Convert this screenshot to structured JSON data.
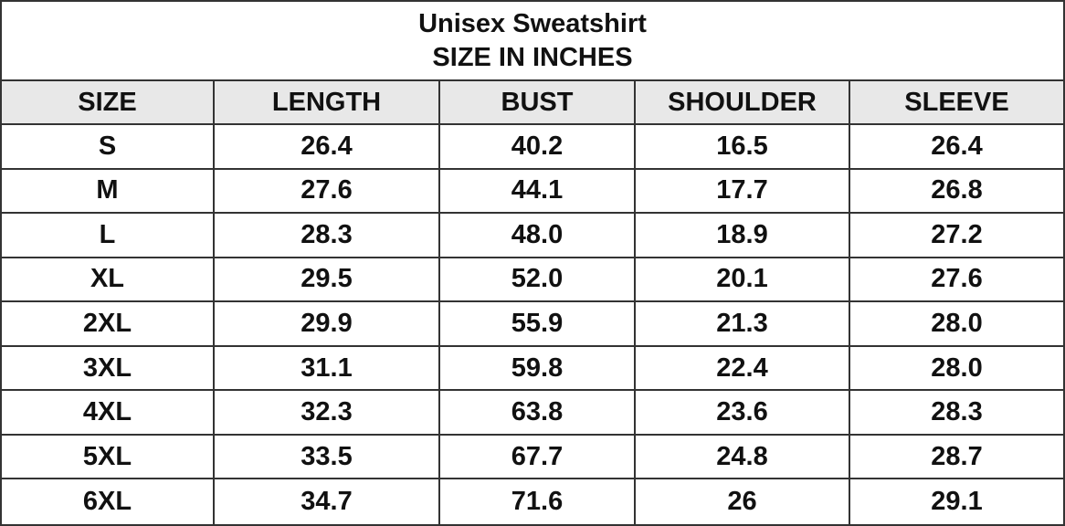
{
  "title": [
    "Unisex Sweatshirt",
    "SIZE IN INCHES"
  ],
  "table": {
    "header": [
      "SIZE",
      "LENGTH",
      "BUST",
      "SHOULDER",
      "SLEEVE"
    ],
    "rows": [
      [
        "S",
        "26.4",
        "40.2",
        "16.5",
        "26.4"
      ],
      [
        "M",
        "27.6",
        "44.1",
        "17.7",
        "26.8"
      ],
      [
        "L",
        "28.3",
        "48.0",
        "18.9",
        "27.2"
      ],
      [
        "XL",
        "29.5",
        "52.0",
        "20.1",
        "27.6"
      ],
      [
        "2XL",
        "29.9",
        "55.9",
        "21.3",
        "28.0"
      ],
      [
        "3XL",
        "31.1",
        "59.8",
        "22.4",
        "28.0"
      ],
      [
        "4XL",
        "32.3",
        "63.8",
        "23.6",
        "28.3"
      ],
      [
        "5XL",
        "33.5",
        "67.7",
        "24.8",
        "28.7"
      ],
      [
        "6XL",
        "34.7",
        "71.6",
        "26",
        "29.1"
      ]
    ]
  }
}
